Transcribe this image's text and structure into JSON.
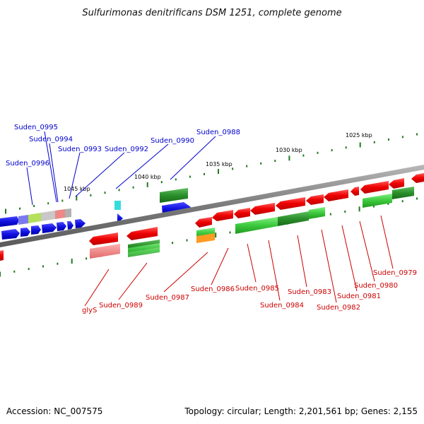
{
  "title": "Sulfurimonas denitrificans DSM 1251, complete genome",
  "accession": "Accession: NC_007575",
  "summary": "Topology: circular; Length: 2,201,561 bp; Genes: 2,155",
  "colors": {
    "blue_label": "#0000cc",
    "red_label": "#cc0000",
    "tick": "#1f7a1f",
    "backbone": "#7a7a7a"
  },
  "kbp_labels": [
    "1025 kbp",
    "1030 kbp",
    "1035 kbp",
    "1040 kbp",
    "1045 kbp"
  ],
  "top_genes": [
    "Suden_0995",
    "Suden_0994",
    "Suden_0993",
    "Suden_0996",
    "Suden_0992",
    "Suden_0990",
    "Suden_0988"
  ],
  "bottom_genes": [
    "glyS",
    "Suden_0989",
    "Suden_0987",
    "Suden_0986",
    "Suden_0985",
    "Suden_0984",
    "Suden_0983",
    "Suden_0982",
    "Suden_0981",
    "Suden_0980",
    "Suden_0979"
  ]
}
